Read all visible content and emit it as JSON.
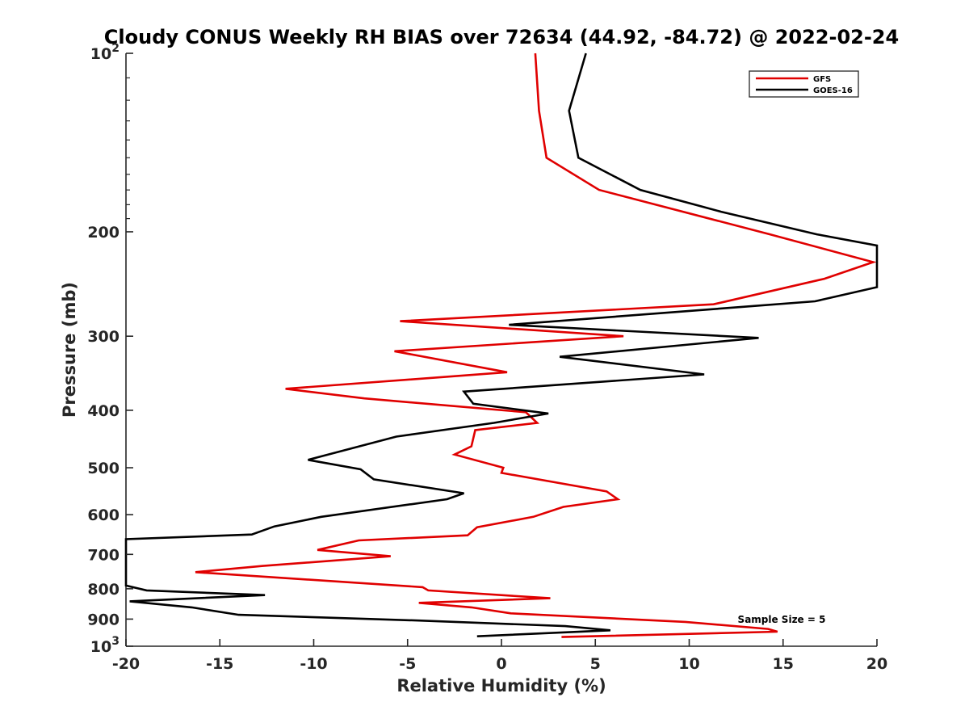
{
  "chart_data": {
    "type": "line",
    "title": "Cloudy CONUS Weekly RH BIAS over 72634 (44.92, -84.72) @ 2022-02-24",
    "xlabel": "Relative Humidity (%)",
    "ylabel": "Pressure (mb)",
    "xlim": [
      -20,
      20
    ],
    "ylim": [
      100,
      1000
    ],
    "yscale": "log",
    "y_reversed": true,
    "grid": false,
    "legend": "top-right",
    "x_ticks": [
      "-20",
      "-15",
      "-10",
      "-5",
      "0",
      "5",
      "10",
      "15",
      "20"
    ],
    "y_ticks": [
      {
        "value": 100,
        "label": "10",
        "sup": "2"
      },
      {
        "value": 200,
        "label": "200",
        "sup": ""
      },
      {
        "value": 300,
        "label": "300",
        "sup": ""
      },
      {
        "value": 400,
        "label": "400",
        "sup": ""
      },
      {
        "value": 500,
        "label": "500",
        "sup": ""
      },
      {
        "value": 600,
        "label": "600",
        "sup": ""
      },
      {
        "value": 700,
        "label": "700",
        "sup": ""
      },
      {
        "value": 800,
        "label": "800",
        "sup": ""
      },
      {
        "value": 900,
        "label": "900",
        "sup": ""
      },
      {
        "value": 1000,
        "label": "10",
        "sup": "3"
      }
    ],
    "annotation": "Sample Size = 5",
    "series": [
      {
        "name": "GFS",
        "color": "#e00000",
        "points": [
          [
            1.8,
            100
          ],
          [
            2.0,
            125
          ],
          [
            2.4,
            150
          ],
          [
            5.2,
            170
          ],
          [
            14.3,
            202
          ],
          [
            19.8,
            225
          ],
          [
            17.2,
            240
          ],
          [
            11.3,
            265
          ],
          [
            -5.4,
            283
          ],
          [
            6.5,
            300
          ],
          [
            -5.7,
            318
          ],
          [
            0.3,
            345
          ],
          [
            -11.5,
            368
          ],
          [
            -7.3,
            382
          ],
          [
            1.3,
            403
          ],
          [
            1.9,
            420
          ],
          [
            -1.4,
            432
          ],
          [
            -1.6,
            460
          ],
          [
            -2.5,
            475
          ],
          [
            0.1,
            500
          ],
          [
            0.0,
            510
          ],
          [
            5.6,
            548
          ],
          [
            6.2,
            565
          ],
          [
            3.3,
            582
          ],
          [
            1.7,
            605
          ],
          [
            -1.3,
            630
          ],
          [
            -1.8,
            650
          ],
          [
            -7.6,
            663
          ],
          [
            -9.8,
            688
          ],
          [
            -5.9,
            705
          ],
          [
            -12.7,
            732
          ],
          [
            -16.3,
            750
          ],
          [
            -4.2,
            795
          ],
          [
            -3.9,
            805
          ],
          [
            2.6,
            830
          ],
          [
            -4.4,
            845
          ],
          [
            -1.6,
            860
          ],
          [
            0.5,
            880
          ],
          [
            9.8,
            910
          ],
          [
            14.2,
            935
          ],
          [
            14.7,
            945
          ],
          [
            3.2,
            965
          ]
        ]
      },
      {
        "name": "GOES-16",
        "color": "#000000",
        "points": [
          [
            4.5,
            100
          ],
          [
            3.6,
            125
          ],
          [
            4.1,
            150
          ],
          [
            7.4,
            170
          ],
          [
            11.7,
            185
          ],
          [
            16.8,
            202
          ],
          [
            20.0,
            211
          ],
          [
            20.0,
            248
          ],
          [
            16.7,
            262
          ],
          [
            0.4,
            287
          ],
          [
            13.7,
            302
          ],
          [
            3.1,
            325
          ],
          [
            10.8,
            348
          ],
          [
            -2.0,
            372
          ],
          [
            -1.5,
            390
          ],
          [
            2.5,
            405
          ],
          [
            -0.4,
            420
          ],
          [
            -5.6,
            443
          ],
          [
            -10.3,
            485
          ],
          [
            -7.5,
            503
          ],
          [
            -6.8,
            523
          ],
          [
            -2.0,
            552
          ],
          [
            -2.9,
            565
          ],
          [
            -9.6,
            605
          ],
          [
            -12.1,
            628
          ],
          [
            -13.3,
            648
          ],
          [
            -20.0,
            660
          ],
          [
            -20.0,
            790
          ],
          [
            -18.9,
            805
          ],
          [
            -12.6,
            820
          ],
          [
            -19.8,
            840
          ],
          [
            -16.5,
            860
          ],
          [
            -14.0,
            885
          ],
          [
            -4.4,
            905
          ],
          [
            3.4,
            925
          ],
          [
            5.8,
            940
          ],
          [
            -1.3,
            962
          ]
        ]
      }
    ]
  }
}
